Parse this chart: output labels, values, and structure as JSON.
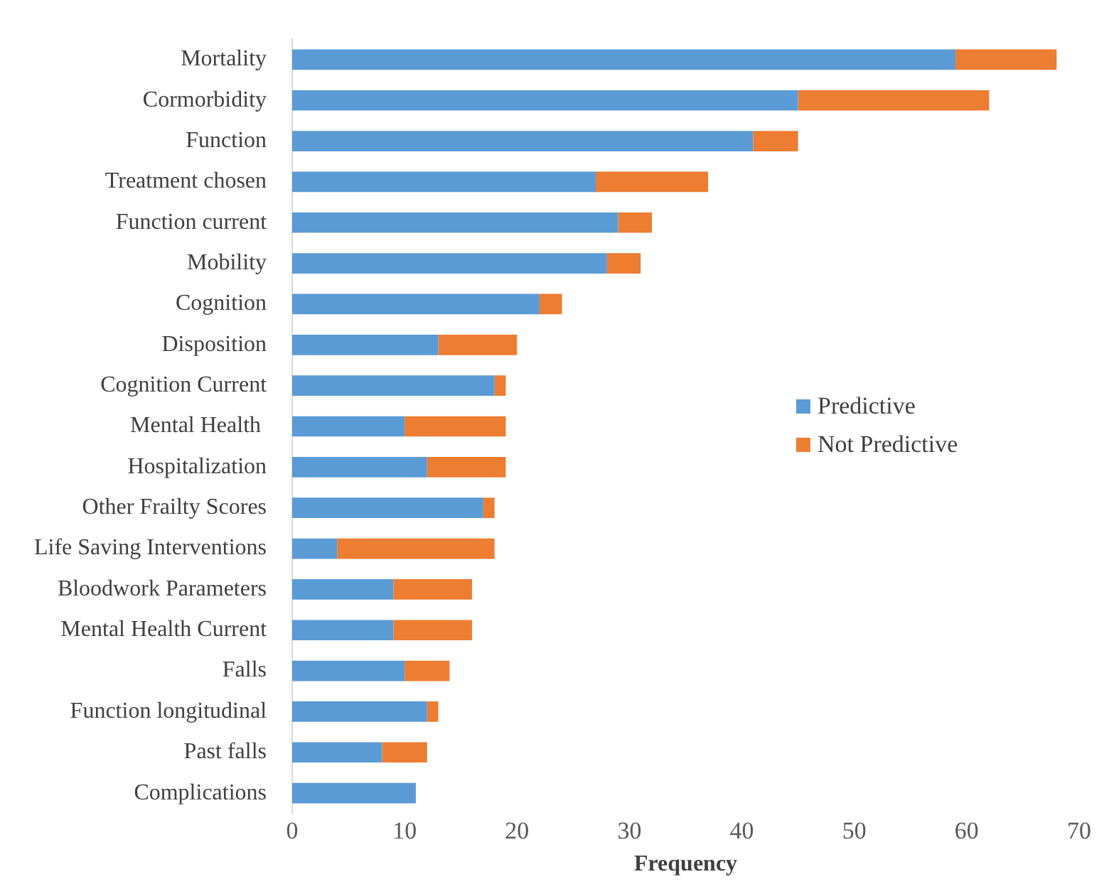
{
  "chart_data": {
    "type": "bar",
    "orientation": "horizontal",
    "stacked": true,
    "xlabel": "Frequency",
    "categories": [
      "Mortality",
      "Cormorbidity",
      "Function",
      "Treatment chosen",
      "Function current",
      "Mobility",
      "Cognition",
      "Disposition",
      "Cognition Current",
      "Mental Health ",
      "Hospitalization",
      "Other Frailty Scores",
      "Life Saving Interventions",
      "Bloodwork Parameters",
      "Mental Health Current",
      "Falls",
      "Function longitudinal",
      "Past falls",
      "Complications"
    ],
    "series": [
      {
        "name": "Predictive",
        "color": "#5b9bd5",
        "values": [
          59,
          45,
          41,
          27,
          29,
          28,
          22,
          13,
          18,
          10,
          12,
          17,
          4,
          9,
          9,
          10,
          12,
          8,
          11
        ]
      },
      {
        "name": "Not Predictive",
        "color": "#ed7d31",
        "values": [
          9,
          17,
          4,
          10,
          3,
          3,
          2,
          7,
          1,
          9,
          7,
          1,
          14,
          7,
          7,
          4,
          1,
          4,
          0
        ]
      }
    ],
    "xlim": [
      0,
      70
    ],
    "xticks": [
      0,
      10,
      20,
      30,
      40,
      50,
      60,
      70
    ],
    "grid": false,
    "legend": "right"
  }
}
